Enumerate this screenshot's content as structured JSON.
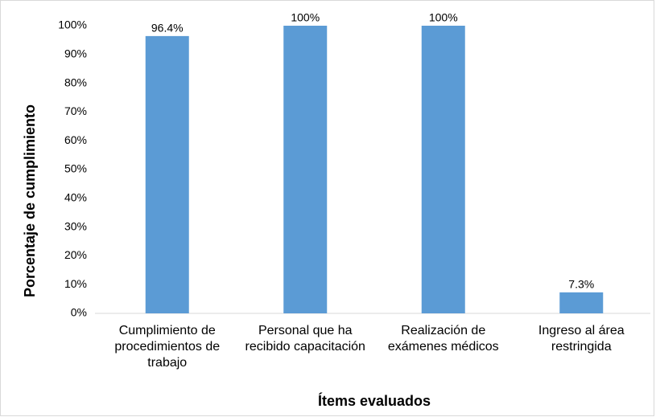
{
  "chart_data": {
    "type": "bar",
    "x_label": "Ítems evaluados",
    "y_label": "Porcentaje de cumplimiento",
    "categories": [
      "Cumplimiento de procedimientos de trabajo",
      "Personal que ha recibido capacitación",
      "Realización de exámenes médicos",
      "Ingreso al área restringida"
    ],
    "values": [
      96.4,
      100,
      100,
      7.3
    ],
    "value_labels": [
      "96.4%",
      "100%",
      "100%",
      "7.3%"
    ],
    "color": "#5b9bd5",
    "ylim": [
      0,
      100
    ],
    "yticks": [
      {
        "value": 0,
        "label": "0%"
      },
      {
        "value": 10,
        "label": "10%"
      },
      {
        "value": 20,
        "label": "20%"
      },
      {
        "value": 30,
        "label": "30%"
      },
      {
        "value": 40,
        "label": "40%"
      },
      {
        "value": 50,
        "label": "50%"
      },
      {
        "value": 60,
        "label": "60%"
      },
      {
        "value": 70,
        "label": "70%"
      },
      {
        "value": 80,
        "label": "80%"
      },
      {
        "value": 90,
        "label": "90%"
      },
      {
        "value": 100,
        "label": "100%"
      }
    ],
    "grid": false
  }
}
